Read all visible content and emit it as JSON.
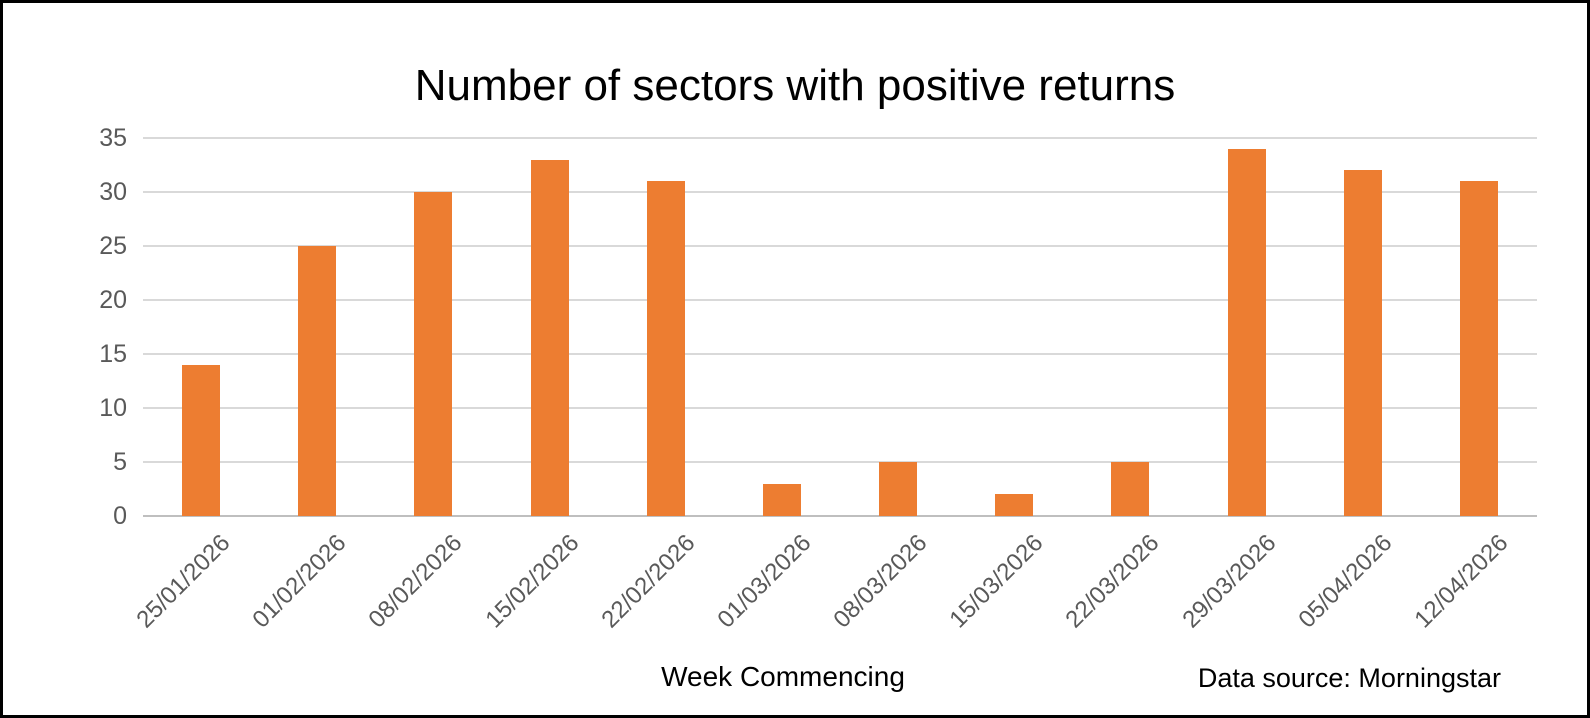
{
  "chart_data": {
    "type": "bar",
    "title": "Number of sectors with positive returns",
    "categories": [
      "25/01/2026",
      "01/02/2026",
      "08/02/2026",
      "15/02/2026",
      "22/02/2026",
      "01/03/2026",
      "08/03/2026",
      "15/03/2026",
      "22/03/2026",
      "29/03/2026",
      "05/04/2026",
      "12/04/2026"
    ],
    "values": [
      14,
      25,
      30,
      33,
      31,
      3,
      5,
      2,
      5,
      34,
      32,
      31
    ],
    "xlabel": "Week Commencing",
    "source_note": "Data source: Morningstar",
    "ylim": [
      0,
      35
    ],
    "y_ticks": [
      0,
      5,
      10,
      15,
      20,
      25,
      30,
      35
    ],
    "grid": true,
    "legend": "none",
    "colors": {
      "bar": "#ED7D31",
      "gridline": "#D9D9D9",
      "axis_line": "#BFBFBF",
      "tick_label": "#595959",
      "title": "#000000",
      "frame_border": "#000000"
    }
  }
}
